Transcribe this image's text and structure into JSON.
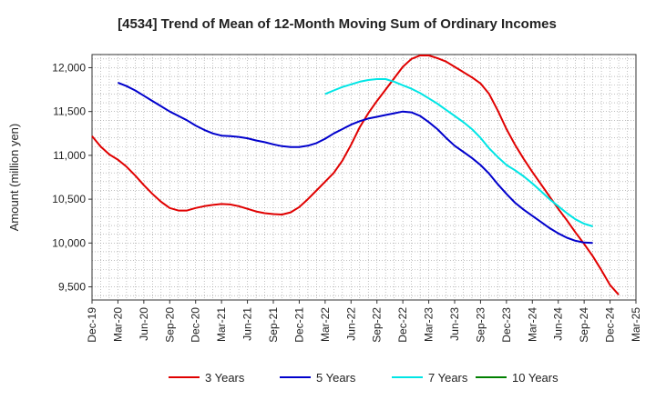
{
  "chart_data": {
    "type": "line",
    "title": "[4534]  Trend of Mean of 12-Month Moving Sum of Ordinary Incomes",
    "ylabel": "Amount (million yen)",
    "xlabel": "",
    "ylim": [
      9350,
      12150
    ],
    "yticks": [
      9500,
      10000,
      10500,
      11000,
      11500,
      12000
    ],
    "ytick_labels": [
      "9,500",
      "10,000",
      "10,500",
      "11,000",
      "11,500",
      "12,000"
    ],
    "x_start": "Dec-19",
    "x_labels": [
      "Dec-19",
      "Mar-20",
      "Jun-20",
      "Sep-20",
      "Dec-20",
      "Mar-21",
      "Jun-21",
      "Sep-21",
      "Dec-21",
      "Mar-22",
      "Jun-22",
      "Sep-22",
      "Dec-22",
      "Mar-23",
      "Jun-23",
      "Sep-23",
      "Dec-23",
      "Mar-24",
      "Jun-24",
      "Sep-24",
      "Dec-24",
      "Mar-25"
    ],
    "series": [
      {
        "name": "3 Years",
        "color": "#e00000",
        "start_month_index": 0,
        "values": [
          11220,
          11100,
          11010,
          10950,
          10870,
          10770,
          10660,
          10560,
          10470,
          10400,
          10370,
          10370,
          10400,
          10420,
          10435,
          10445,
          10440,
          10420,
          10390,
          10360,
          10340,
          10330,
          10325,
          10350,
          10410,
          10500,
          10600,
          10700,
          10800,
          10940,
          11120,
          11320,
          11480,
          11620,
          11750,
          11880,
          12010,
          12100,
          12140,
          12140,
          12110,
          12070,
          12010,
          11950,
          11890,
          11820,
          11700,
          11510,
          11300,
          11120,
          10960,
          10810,
          10670,
          10530,
          10390,
          10260,
          10120,
          9990,
          9850,
          9690,
          9520,
          9410
        ]
      },
      {
        "name": "5 Years",
        "color": "#0000cc",
        "start_month_index": 3,
        "values": [
          11830,
          11790,
          11740,
          11680,
          11620,
          11560,
          11500,
          11450,
          11400,
          11340,
          11290,
          11250,
          11225,
          11220,
          11210,
          11195,
          11170,
          11150,
          11125,
          11105,
          11095,
          11095,
          11110,
          11140,
          11190,
          11250,
          11300,
          11350,
          11390,
          11420,
          11440,
          11460,
          11480,
          11500,
          11490,
          11450,
          11380,
          11300,
          11200,
          11110,
          11040,
          10970,
          10890,
          10790,
          10670,
          10560,
          10460,
          10380,
          10310,
          10240,
          10170,
          10110,
          10060,
          10025,
          10005,
          10000
        ]
      },
      {
        "name": "7 Years",
        "color": "#00e5e5",
        "start_month_index": 27,
        "values": [
          11700,
          11740,
          11780,
          11810,
          11840,
          11860,
          11870,
          11870,
          11840,
          11800,
          11760,
          11710,
          11650,
          11590,
          11520,
          11450,
          11380,
          11300,
          11200,
          11080,
          10980,
          10890,
          10830,
          10760,
          10680,
          10590,
          10500,
          10420,
          10340,
          10270,
          10220,
          10190
        ]
      },
      {
        "name": "10 Years",
        "color": "#008000",
        "start_month_index": 0,
        "values": []
      }
    ],
    "legend_position": "bottom",
    "grid": true
  }
}
